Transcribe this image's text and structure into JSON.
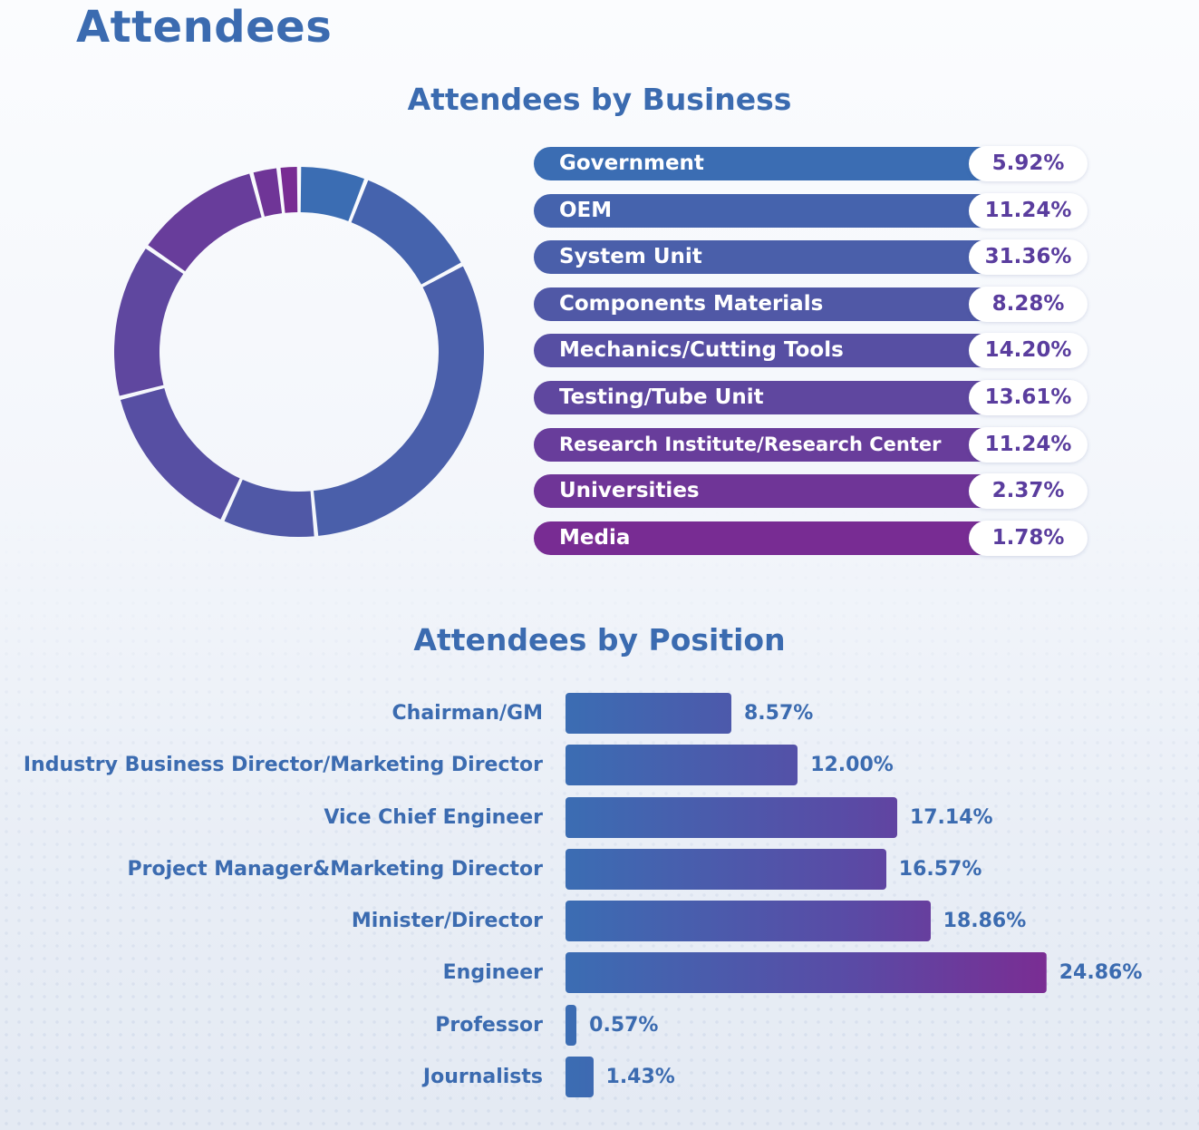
{
  "page_title": "Attendees",
  "chart_data": [
    {
      "type": "pie",
      "variant": "donut",
      "title": "Attendees by Business",
      "categories": [
        "Government",
        "OEM",
        "System Unit",
        "Components Materials",
        "Mechanics/Cutting Tools",
        "Testing/Tube Unit",
        "Research Institute/Research Center",
        "Universities",
        "Media"
      ],
      "values": [
        5.92,
        11.24,
        31.36,
        8.28,
        14.2,
        13.61,
        11.24,
        2.37,
        1.78
      ],
      "labels": [
        "5.92%",
        "11.24%",
        "31.36%",
        "8.28%",
        "14.20%",
        "13.61%",
        "11.24%",
        "2.37%",
        "1.78%"
      ],
      "colors": [
        "#3b6db3",
        "#4563ad",
        "#4a5faa",
        "#5058a6",
        "#574fa3",
        "#5f479f",
        "#683d9b",
        "#6f3597",
        "#782c93"
      ],
      "legend": "right"
    },
    {
      "type": "bar",
      "orientation": "horizontal",
      "title": "Attendees by Position",
      "categories": [
        "Chairman/GM",
        "Industry Business Director/Marketing Director",
        "Vice Chief Engineer",
        "Project Manager&Marketing Director",
        "Minister/Director",
        "Engineer",
        "Professor",
        "Journalists"
      ],
      "values": [
        8.57,
        12.0,
        17.14,
        16.57,
        18.86,
        24.86,
        0.57,
        1.43
      ],
      "labels": [
        "8.57%",
        "12.00%",
        "17.14%",
        "16.57%",
        "18.86%",
        "24.86%",
        "0.57%",
        "1.43%"
      ],
      "colors": [
        "#3b6db3",
        "#5a4aa5",
        "#7a2d93"
      ]
    }
  ]
}
